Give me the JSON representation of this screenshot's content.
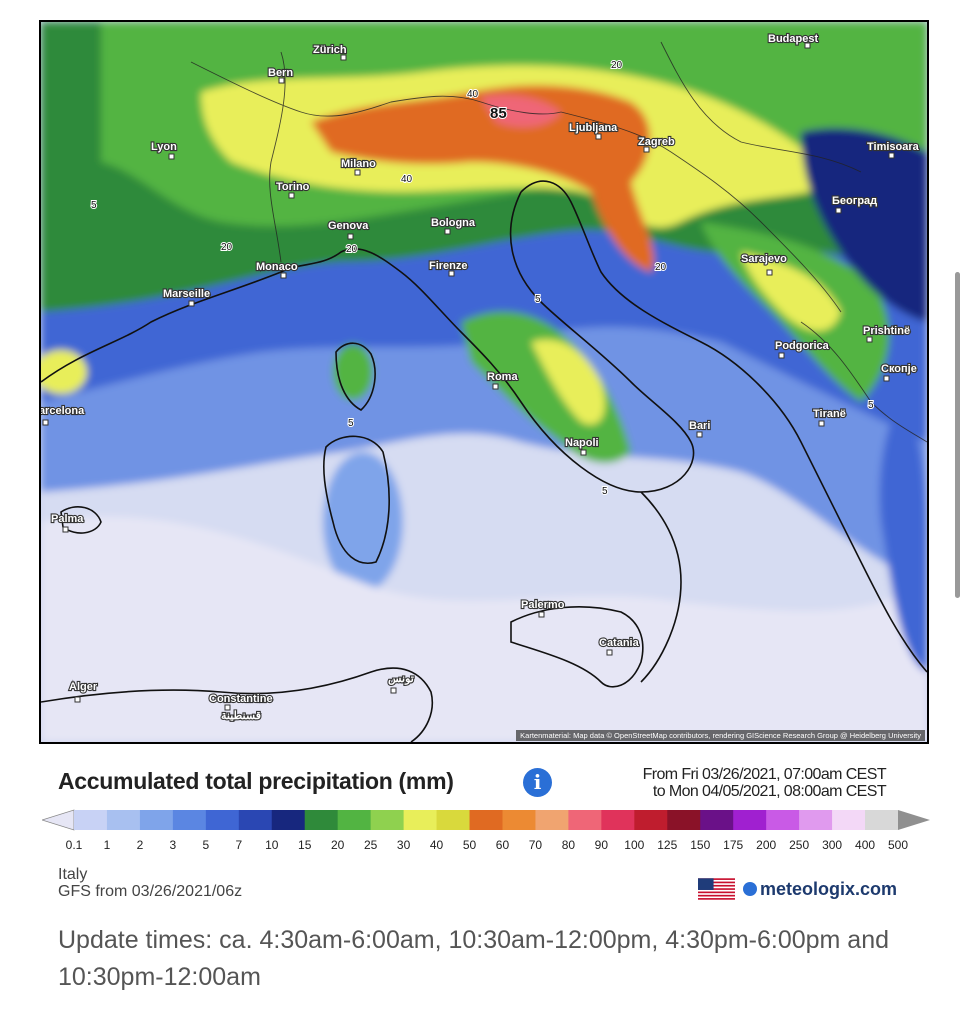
{
  "map": {
    "region": "Italy",
    "attribution": "Kartenmaterial: Map data © OpenStreetMap contributors, rendering GIScience Research Group @ Heidelberg University",
    "cities": [
      {
        "name": "Zürich"
      },
      {
        "name": "Bern"
      },
      {
        "name": "Budapest"
      },
      {
        "name": "Lyon"
      },
      {
        "name": "Milano"
      },
      {
        "name": "Ljubljana"
      },
      {
        "name": "Zagreb"
      },
      {
        "name": "Timisoara"
      },
      {
        "name": "Torino"
      },
      {
        "name": "Genova"
      },
      {
        "name": "Bologna"
      },
      {
        "name": "Београд"
      },
      {
        "name": "Monaco"
      },
      {
        "name": "Firenze"
      },
      {
        "name": "Sarajevo"
      },
      {
        "name": "Marseille"
      },
      {
        "name": "Prishtinë"
      },
      {
        "name": "Podgorica"
      },
      {
        "name": "Roma"
      },
      {
        "name": "Скопје"
      },
      {
        "name": "Barcelona"
      },
      {
        "name": "Tiranë"
      },
      {
        "name": "Bari"
      },
      {
        "name": "Napoli"
      },
      {
        "name": "Palma"
      },
      {
        "name": "Palermo"
      },
      {
        "name": "Catania"
      },
      {
        "name": "Alger"
      },
      {
        "name": "Constantine"
      },
      {
        "name": "قسنطينة"
      },
      {
        "name": "تونس"
      }
    ],
    "isolines": [
      "20",
      "40",
      "85",
      "40",
      "20",
      "5",
      "20",
      "5",
      "5",
      "5",
      "5",
      "20"
    ]
  },
  "legend": {
    "title": "Accumulated total precipitation (mm)",
    "period_from": "From Fri 03/26/2021, 07:00am CEST",
    "period_to": "to Mon 04/05/2021, 08:00am CEST",
    "ticks": [
      "0.1",
      "1",
      "2",
      "3",
      "5",
      "7",
      "10",
      "15",
      "20",
      "25",
      "30",
      "40",
      "50",
      "60",
      "70",
      "80",
      "90",
      "100",
      "125",
      "150",
      "175",
      "200",
      "250",
      "300",
      "400",
      "500"
    ],
    "colors": [
      "#e6e6f5",
      "#c8d2f5",
      "#a8c0f0",
      "#7fa4ea",
      "#5b86e2",
      "#3f66d4",
      "#2a47b3",
      "#17277e",
      "#2f8a3a",
      "#52b442",
      "#8fd14f",
      "#e8ee5a",
      "#d9d93c",
      "#e06a22",
      "#ec8a33",
      "#f0a470",
      "#ef6677",
      "#e0335b",
      "#bf1d2e",
      "#8a1228",
      "#6a1188",
      "#a020d0",
      "#c95ae6",
      "#e09aee",
      "#f3d8f7",
      "#d8d8d8",
      "#909090"
    ]
  },
  "footer": {
    "region": "Italy",
    "model_run": "GFS from 03/26/2021/06z",
    "brand": "meteologix.com",
    "update_times": "Update times: ca. 4:30am-6:00am, 10:30am-12:00pm, 4:30pm-6:00pm and 10:30pm-12:00am"
  }
}
